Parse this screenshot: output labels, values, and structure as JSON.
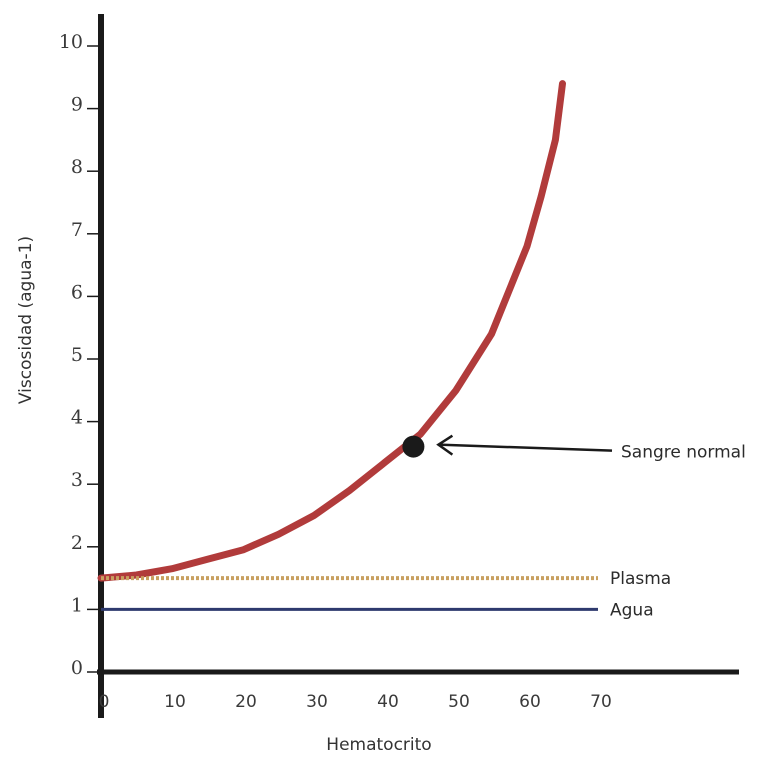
{
  "chart_data": {
    "type": "line",
    "title": "",
    "xlabel": "Hematocrito",
    "ylabel": "Viscosidad (agua-1)",
    "xlim": [
      0,
      90
    ],
    "ylim": [
      0,
      10.5
    ],
    "x_ticks": [
      0,
      10,
      20,
      30,
      40,
      50,
      60,
      70
    ],
    "y_ticks": [
      0,
      1,
      2,
      3,
      4,
      5,
      6,
      7,
      8,
      9,
      10
    ],
    "grid": false,
    "series": [
      {
        "name": "",
        "kind": "curve",
        "color": "#b13b3b",
        "x": [
          0,
          5,
          10,
          15,
          20,
          25,
          30,
          35,
          40,
          45,
          50,
          55,
          60,
          62,
          64,
          65
        ],
        "y": [
          1.5,
          1.55,
          1.65,
          1.8,
          1.95,
          2.2,
          2.5,
          2.9,
          3.35,
          3.8,
          4.5,
          5.4,
          6.8,
          7.6,
          8.5,
          9.4
        ]
      },
      {
        "name": "Plasma",
        "kind": "dotted",
        "color": "#c8a060",
        "x": [
          0,
          70
        ],
        "y": [
          1.5,
          1.5
        ]
      },
      {
        "name": "Agua",
        "kind": "solid",
        "color": "#2e3a6e",
        "x": [
          0,
          70
        ],
        "y": [
          1.0,
          1.0
        ]
      }
    ],
    "annotations": [
      {
        "label": "Sangre normal",
        "point": {
          "x": 44,
          "y": 3.6
        },
        "arrow": true
      }
    ]
  },
  "colors": {
    "axis": "#1a1a1a",
    "point": "#1a1a1a",
    "arrow": "#1a1a1a"
  }
}
